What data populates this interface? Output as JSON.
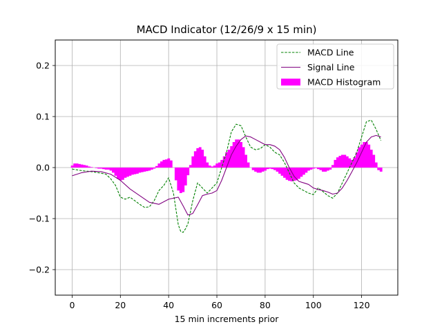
{
  "chart_data": {
    "type": "line",
    "title": "MACD Indicator (12/26/9 x 15 min)",
    "xlabel": "15 min increments prior",
    "ylabel": "",
    "xlim": [
      -7,
      135
    ],
    "ylim": [
      -0.25,
      0.25
    ],
    "xticks": [
      0,
      20,
      40,
      60,
      80,
      100,
      120
    ],
    "yticks": [
      -0.2,
      -0.1,
      0.0,
      0.1,
      0.2
    ],
    "xtick_labels": [
      "0",
      "20",
      "40",
      "60",
      "80",
      "100",
      "120"
    ],
    "ytick_labels": [
      "−0.2",
      "−0.1",
      "0.0",
      "0.1",
      "0.2"
    ],
    "grid": true,
    "legend_position": "top-right",
    "series": [
      {
        "name": "MACD Line",
        "style": "dashed",
        "color": "#008000",
        "x": [
          0,
          4,
          8,
          12,
          14,
          16,
          18,
          20,
          22,
          24,
          26,
          28,
          30,
          32,
          34,
          36,
          38,
          40,
          42,
          44,
          45,
          46,
          47,
          48,
          50,
          52,
          54,
          56,
          58,
          60,
          62,
          64,
          66,
          68,
          70,
          72,
          74,
          76,
          78,
          80,
          82,
          84,
          86,
          88,
          90,
          92,
          94,
          96,
          98,
          100,
          102,
          104,
          106,
          108,
          110,
          112,
          114,
          116,
          118,
          120,
          122,
          124,
          126,
          128
        ],
        "values": [
          -0.003,
          -0.006,
          -0.008,
          -0.011,
          -0.013,
          -0.022,
          -0.035,
          -0.058,
          -0.062,
          -0.058,
          -0.065,
          -0.072,
          -0.078,
          -0.077,
          -0.065,
          -0.045,
          -0.035,
          -0.02,
          -0.05,
          -0.112,
          -0.125,
          -0.127,
          -0.12,
          -0.11,
          -0.065,
          -0.03,
          -0.04,
          -0.05,
          -0.04,
          -0.03,
          0.0,
          0.03,
          0.07,
          0.085,
          0.082,
          0.06,
          0.04,
          0.035,
          0.037,
          0.045,
          0.04,
          0.03,
          0.025,
          0.01,
          -0.01,
          -0.03,
          -0.04,
          -0.045,
          -0.05,
          -0.053,
          -0.04,
          -0.047,
          -0.055,
          -0.06,
          -0.05,
          -0.03,
          -0.01,
          0.01,
          0.03,
          0.06,
          0.09,
          0.093,
          0.075,
          0.053
        ]
      },
      {
        "name": "Signal Line",
        "style": "solid",
        "color": "#800080",
        "x": [
          0,
          4,
          8,
          12,
          16,
          20,
          24,
          28,
          32,
          36,
          40,
          44,
          46,
          48,
          50,
          52,
          54,
          56,
          58,
          60,
          62,
          64,
          66,
          68,
          70,
          72,
          74,
          76,
          78,
          80,
          82,
          84,
          86,
          88,
          90,
          92,
          94,
          96,
          98,
          100,
          102,
          104,
          106,
          108,
          110,
          112,
          114,
          116,
          118,
          120,
          122,
          124,
          126,
          128
        ],
        "values": [
          -0.016,
          -0.01,
          -0.007,
          -0.008,
          -0.013,
          -0.025,
          -0.042,
          -0.055,
          -0.068,
          -0.072,
          -0.062,
          -0.058,
          -0.075,
          -0.093,
          -0.09,
          -0.073,
          -0.055,
          -0.052,
          -0.05,
          -0.045,
          -0.025,
          0.0,
          0.025,
          0.042,
          0.055,
          0.062,
          0.06,
          0.055,
          0.05,
          0.045,
          0.045,
          0.042,
          0.035,
          0.02,
          0.0,
          -0.017,
          -0.027,
          -0.03,
          -0.033,
          -0.04,
          -0.043,
          -0.045,
          -0.048,
          -0.052,
          -0.05,
          -0.04,
          -0.025,
          -0.008,
          0.01,
          0.03,
          0.05,
          0.06,
          0.063,
          0.06
        ]
      },
      {
        "name": "MACD Histogram",
        "style": "bar",
        "color": "#ff00ff",
        "x": [
          0,
          1,
          2,
          3,
          4,
          5,
          6,
          7,
          8,
          9,
          10,
          11,
          12,
          13,
          14,
          15,
          16,
          17,
          18,
          19,
          20,
          21,
          22,
          23,
          24,
          25,
          26,
          27,
          28,
          29,
          30,
          31,
          32,
          33,
          34,
          35,
          36,
          37,
          38,
          39,
          40,
          41,
          42,
          43,
          44,
          45,
          46,
          47,
          48,
          49,
          50,
          51,
          52,
          53,
          54,
          55,
          56,
          57,
          58,
          59,
          60,
          61,
          62,
          63,
          64,
          65,
          66,
          67,
          68,
          69,
          70,
          71,
          72,
          73,
          74,
          75,
          76,
          77,
          78,
          79,
          80,
          81,
          82,
          83,
          84,
          85,
          86,
          87,
          88,
          89,
          90,
          91,
          92,
          93,
          94,
          95,
          96,
          97,
          98,
          99,
          100,
          101,
          102,
          103,
          104,
          105,
          106,
          107,
          108,
          109,
          110,
          111,
          112,
          113,
          114,
          115,
          116,
          117,
          118,
          119,
          120,
          121,
          122,
          123,
          124,
          125,
          126,
          127,
          128
        ],
        "values": [
          0.004,
          0.008,
          0.008,
          0.007,
          0.006,
          0.005,
          0.004,
          0.002,
          0.001,
          0.0,
          -0.001,
          -0.002,
          -0.002,
          -0.003,
          -0.004,
          -0.004,
          -0.006,
          -0.01,
          -0.016,
          -0.022,
          -0.025,
          -0.024,
          -0.02,
          -0.018,
          -0.016,
          -0.014,
          -0.013,
          -0.012,
          -0.01,
          -0.009,
          -0.008,
          -0.007,
          -0.006,
          -0.004,
          -0.002,
          0.003,
          0.008,
          0.012,
          0.015,
          0.016,
          0.018,
          0.014,
          0.0,
          -0.025,
          -0.045,
          -0.05,
          -0.048,
          -0.035,
          -0.015,
          0.005,
          0.022,
          0.032,
          0.038,
          0.04,
          0.035,
          0.022,
          0.01,
          0.004,
          0.002,
          0.004,
          0.008,
          0.01,
          0.015,
          0.022,
          0.03,
          0.035,
          0.042,
          0.05,
          0.055,
          0.055,
          0.05,
          0.04,
          0.025,
          0.01,
          0.0,
          -0.005,
          -0.008,
          -0.01,
          -0.01,
          -0.008,
          -0.006,
          -0.003,
          -0.002,
          -0.003,
          -0.005,
          -0.008,
          -0.012,
          -0.016,
          -0.02,
          -0.024,
          -0.026,
          -0.027,
          -0.026,
          -0.025,
          -0.022,
          -0.018,
          -0.014,
          -0.01,
          -0.006,
          -0.004,
          -0.002,
          -0.001,
          -0.003,
          -0.005,
          -0.008,
          -0.008,
          -0.006,
          -0.004,
          0.005,
          0.015,
          0.02,
          0.023,
          0.025,
          0.025,
          0.022,
          0.018,
          0.015,
          0.02,
          0.03,
          0.04,
          0.045,
          0.05,
          0.05,
          0.045,
          0.035,
          0.025,
          0.01,
          -0.005,
          -0.008
        ]
      }
    ]
  }
}
